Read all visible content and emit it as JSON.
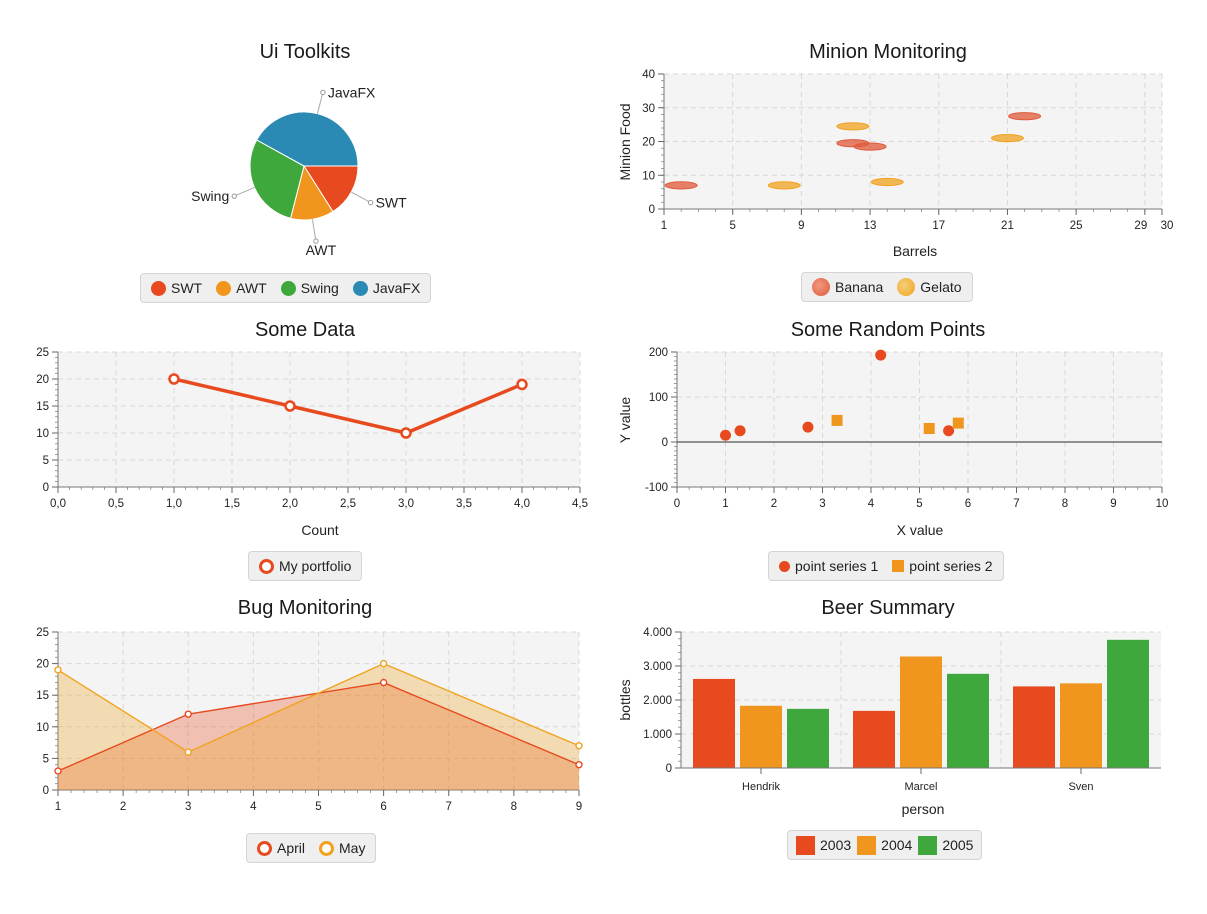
{
  "chart_data": [
    {
      "id": "pie",
      "type": "pie",
      "title": "Ui Toolkits",
      "slices": [
        {
          "label": "SWT",
          "value": 16,
          "color": "#e84a1f"
        },
        {
          "label": "AWT",
          "value": 13,
          "color": "#f0961e"
        },
        {
          "label": "Swing",
          "value": 29,
          "color": "#3fa83c"
        },
        {
          "label": "JavaFX",
          "value": 42,
          "color": "#2a8ab3"
        }
      ],
      "legend": [
        "SWT",
        "AWT",
        "Swing",
        "JavaFX"
      ]
    },
    {
      "id": "bubble",
      "type": "scatter",
      "title": "Minion Monitoring",
      "xlabel": "Barrels",
      "ylabel": "Minion Food",
      "xlim": [
        1,
        30
      ],
      "ylim": [
        0,
        40
      ],
      "xticks": [
        1,
        5,
        9,
        13,
        17,
        21,
        25,
        29,
        30
      ],
      "yticks": [
        0,
        10,
        20,
        30,
        40
      ],
      "series": [
        {
          "name": "Banana",
          "color": "#e0593a",
          "points": [
            [
              2,
              7
            ],
            [
              12,
              19.5
            ],
            [
              13,
              18.5
            ],
            [
              22,
              27.5
            ]
          ]
        },
        {
          "name": "Gelato",
          "color": "#f0a31f",
          "points": [
            [
              8,
              7
            ],
            [
              12,
              24.5
            ],
            [
              14,
              8
            ],
            [
              21,
              21
            ]
          ]
        }
      ]
    },
    {
      "id": "line",
      "type": "line",
      "title": "Some Data",
      "xlabel": "Count",
      "ylabel": "",
      "xlim": [
        0,
        4.5
      ],
      "ylim": [
        0,
        25
      ],
      "xticks": [
        "0,0",
        "0,5",
        "1,0",
        "1,5",
        "2,0",
        "2,5",
        "3,0",
        "3,5",
        "4,0",
        "4,5"
      ],
      "yticks": [
        0,
        5,
        10,
        15,
        20,
        25
      ],
      "series": [
        {
          "name": "My portfolio",
          "color": "#e84a1f",
          "x": [
            1,
            2,
            3,
            4
          ],
          "y": [
            20,
            15,
            10,
            19
          ]
        }
      ]
    },
    {
      "id": "scatter",
      "type": "scatter",
      "title": "Some Random Points",
      "xlabel": "X value",
      "ylabel": "Y value",
      "xlim": [
        0,
        10
      ],
      "ylim": [
        -100,
        200
      ],
      "xticks": [
        0,
        1,
        2,
        3,
        4,
        5,
        6,
        7,
        8,
        9,
        10
      ],
      "yticks": [
        -100,
        0,
        100,
        200
      ],
      "series": [
        {
          "name": "point series 1",
          "color": "#e84a1f",
          "marker": "circle",
          "points": [
            [
              1,
              15
            ],
            [
              1.3,
              25
            ],
            [
              2.7,
              33
            ],
            [
              4.2,
              193
            ],
            [
              5.6,
              25
            ]
          ]
        },
        {
          "name": "point series 2",
          "color": "#f0961e",
          "marker": "square",
          "points": [
            [
              3.3,
              48
            ],
            [
              5.2,
              30
            ],
            [
              5.8,
              42
            ]
          ]
        }
      ]
    },
    {
      "id": "area",
      "type": "area",
      "title": "Bug Monitoring",
      "xlabel": "",
      "ylabel": "",
      "xlim": [
        1,
        9
      ],
      "ylim": [
        0,
        25
      ],
      "xticks": [
        1,
        2,
        3,
        4,
        5,
        6,
        7,
        8,
        9
      ],
      "yticks": [
        0,
        5,
        10,
        15,
        20,
        25
      ],
      "series": [
        {
          "name": "April",
          "color": "#e84a1f",
          "x": [
            1,
            3,
            6,
            9
          ],
          "y": [
            3,
            12,
            17,
            4
          ]
        },
        {
          "name": "May",
          "color": "#f0a31f",
          "x": [
            1,
            3,
            6,
            9
          ],
          "y": [
            19,
            6,
            20,
            7
          ]
        }
      ]
    },
    {
      "id": "bar",
      "type": "bar",
      "title": "Beer Summary",
      "xlabel": "person",
      "ylabel": "bottles",
      "ylim": [
        0,
        4000
      ],
      "yticks": [
        "0",
        "1.000",
        "2.000",
        "3.000",
        "4.000"
      ],
      "categories": [
        "Hendrik",
        "Marcel",
        "Sven"
      ],
      "series": [
        {
          "name": "2003",
          "color": "#e84a1f",
          "values": [
            2620,
            1680,
            2400
          ]
        },
        {
          "name": "2004",
          "color": "#f0961e",
          "values": [
            1830,
            3280,
            2490
          ]
        },
        {
          "name": "2005",
          "color": "#3fa83c",
          "values": [
            1740,
            2770,
            3770
          ]
        }
      ]
    }
  ]
}
